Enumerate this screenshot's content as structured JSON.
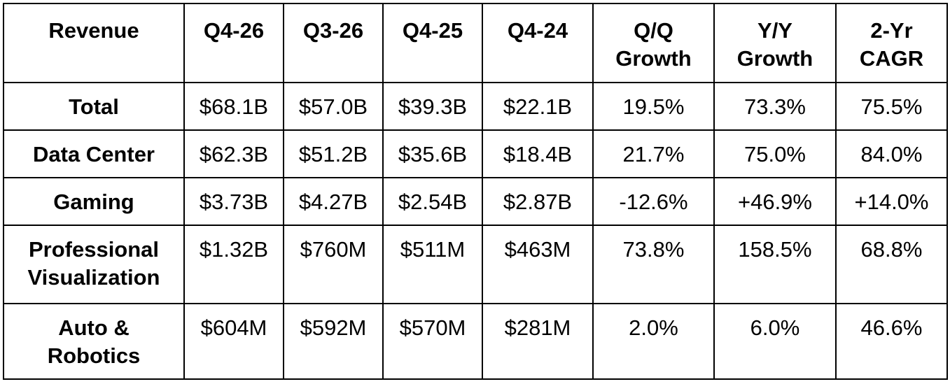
{
  "table": {
    "header": [
      "Revenue",
      "Q4-26",
      "Q3-26",
      "Q4-25",
      "Q4-24",
      "Q/Q\nGrowth",
      "Y/Y\nGrowth",
      "2-Yr\nCAGR"
    ],
    "rows": [
      [
        "Total",
        "$68.1B",
        "$57.0B",
        "$39.3B",
        "$22.1B",
        "19.5%",
        "73.3%",
        "75.5%"
      ],
      [
        "Data Center",
        "$62.3B",
        "$51.2B",
        "$35.6B",
        "$18.4B",
        "21.7%",
        "75.0%",
        "84.0%"
      ],
      [
        "Gaming",
        "$3.73B",
        "$4.27B",
        "$2.54B",
        "$2.87B",
        "-12.6%",
        "+46.9%",
        "+14.0%"
      ],
      [
        "Professional\nVisualization",
        "$1.32B",
        "$760M",
        "$511M",
        "$463M",
        "73.8%",
        "158.5%",
        "68.8%"
      ],
      [
        "Auto &\nRobotics",
        "$604M",
        "$592M",
        "$570M",
        "$281M",
        "2.0%",
        "6.0%",
        "46.6%"
      ]
    ]
  }
}
